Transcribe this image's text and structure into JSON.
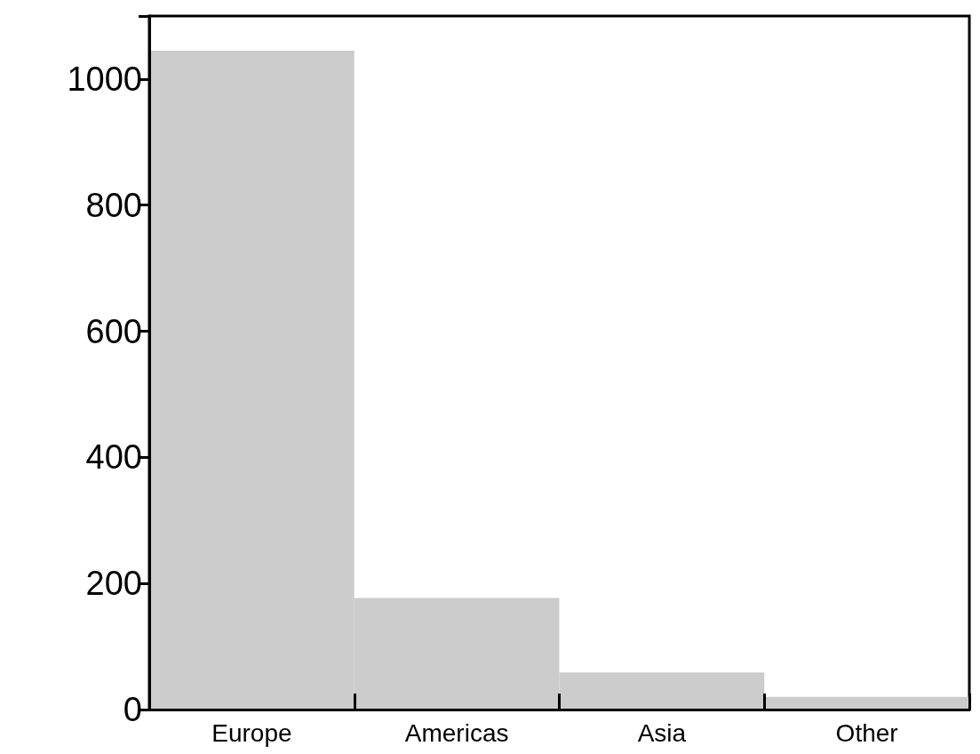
{
  "chart_data": {
    "type": "bar",
    "categories": [
      "Europe",
      "Americas",
      "Asia",
      "Other"
    ],
    "values": [
      1045,
      177,
      59,
      20
    ],
    "color": "#cccccc",
    "ylim": [
      0,
      1100
    ],
    "yticks": [
      0,
      200,
      400,
      600,
      800,
      1000
    ],
    "grid": false
  }
}
